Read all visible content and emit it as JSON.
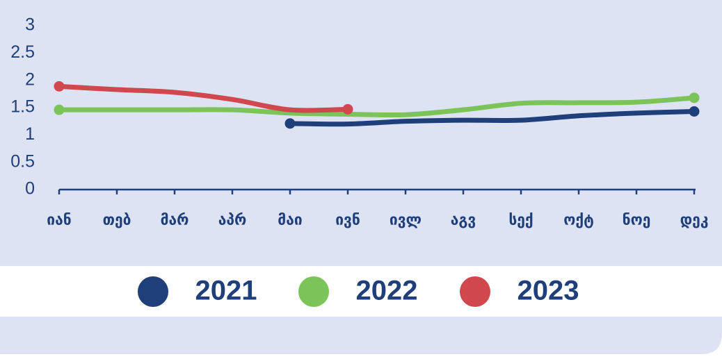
{
  "chart_data": {
    "type": "line",
    "categories": [
      "იან",
      "თებ",
      "მარ",
      "აპრ",
      "მაი",
      "ივნ",
      "ივლ",
      "აგვ",
      "სექ",
      "ოქტ",
      "ნოე",
      "დეკ"
    ],
    "series": [
      {
        "name": "2021",
        "color": "#1f3f7a",
        "values": [
          null,
          null,
          null,
          null,
          1.21,
          1.2,
          1.25,
          1.27,
          1.27,
          1.35,
          1.4,
          1.43
        ]
      },
      {
        "name": "2022",
        "color": "#7cc35a",
        "values": [
          1.46,
          1.46,
          1.46,
          1.46,
          1.4,
          1.38,
          1.37,
          1.46,
          1.58,
          1.59,
          1.6,
          1.68
        ]
      },
      {
        "name": "2023",
        "color": "#d0484e",
        "values": [
          1.89,
          1.83,
          1.78,
          1.65,
          1.46,
          1.47,
          null,
          null,
          null,
          null,
          null,
          null
        ]
      }
    ],
    "ylim": [
      0,
      3
    ],
    "yticks": [
      0,
      0.5,
      1,
      1.5,
      2,
      2.5,
      3
    ]
  }
}
